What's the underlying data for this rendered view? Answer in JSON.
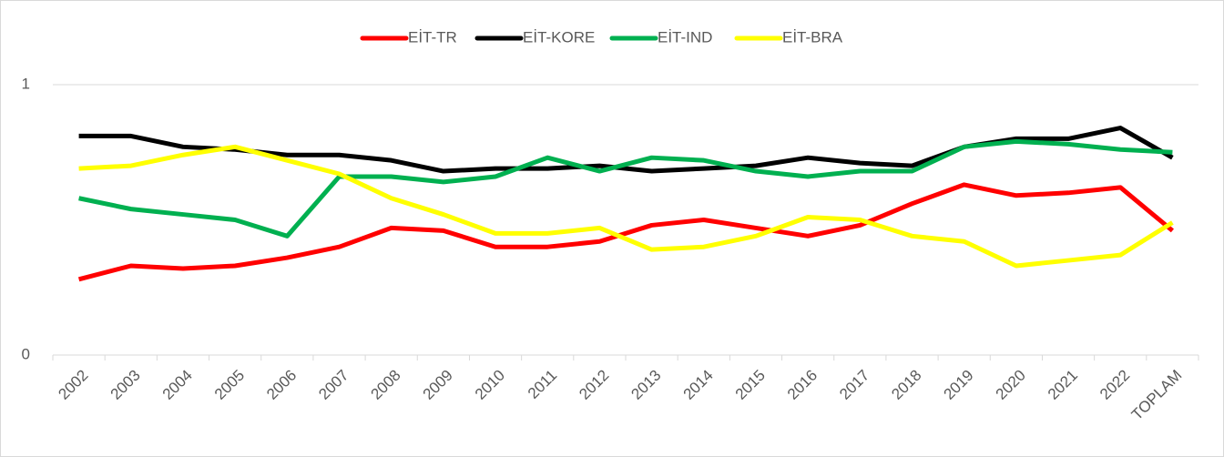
{
  "chart_data": {
    "type": "line",
    "categories": [
      "2002",
      "2003",
      "2004",
      "2005",
      "2006",
      "2007",
      "2008",
      "2009",
      "2010",
      "2011",
      "2012",
      "2013",
      "2014",
      "2015",
      "2016",
      "2017",
      "2018",
      "2019",
      "2020",
      "2021",
      "2022",
      "TOPLAM"
    ],
    "series": [
      {
        "name": "EİT-TR",
        "color": "#ff0000",
        "values": [
          0.28,
          0.33,
          0.32,
          0.33,
          0.36,
          0.4,
          0.47,
          0.46,
          0.4,
          0.4,
          0.42,
          0.48,
          0.5,
          0.47,
          0.44,
          0.48,
          0.56,
          0.63,
          0.59,
          0.6,
          0.62,
          0.46
        ]
      },
      {
        "name": "EİT-KORE",
        "color": "#000000",
        "values": [
          0.81,
          0.81,
          0.77,
          0.76,
          0.74,
          0.74,
          0.72,
          0.68,
          0.69,
          0.69,
          0.7,
          0.68,
          0.69,
          0.7,
          0.73,
          0.71,
          0.7,
          0.77,
          0.8,
          0.8,
          0.84,
          0.73
        ]
      },
      {
        "name": "EİT-IND",
        "color": "#00b050",
        "values": [
          0.58,
          0.54,
          0.52,
          0.5,
          0.44,
          0.66,
          0.66,
          0.64,
          0.66,
          0.73,
          0.68,
          0.73,
          0.72,
          0.68,
          0.66,
          0.68,
          0.68,
          0.77,
          0.79,
          0.78,
          0.76,
          0.75
        ]
      },
      {
        "name": "EİT-BRA",
        "color": "#ffff00",
        "values": [
          0.69,
          0.7,
          0.74,
          0.77,
          0.72,
          0.67,
          0.58,
          0.52,
          0.45,
          0.45,
          0.47,
          0.39,
          0.4,
          0.44,
          0.51,
          0.5,
          0.44,
          0.42,
          0.33,
          0.35,
          0.37,
          0.49
        ]
      }
    ],
    "ylim": [
      0,
      1
    ],
    "yticks": [
      0,
      1
    ],
    "grid": true,
    "legend": "top"
  }
}
